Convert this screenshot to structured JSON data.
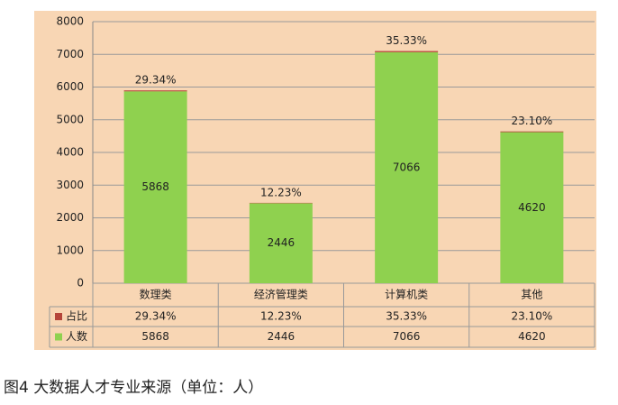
{
  "chart_data": {
    "type": "bar",
    "stacked": true,
    "categories": [
      "数理类",
      "经济管理类",
      "计算机类",
      "其他"
    ],
    "series": [
      {
        "name": "占比",
        "color": "#b5453a",
        "values": [
          29.34,
          12.23,
          35.33,
          23.1
        ],
        "value_labels": [
          "29.34%",
          "12.23%",
          "35.33%",
          "23.10%"
        ]
      },
      {
        "name": "人数",
        "color": "#8fd14f",
        "values": [
          5868,
          2446,
          7066,
          4620
        ]
      }
    ],
    "ylim": [
      0,
      8000
    ],
    "yticks": [
      0,
      1000,
      2000,
      3000,
      4000,
      5000,
      6000,
      7000,
      8000
    ],
    "grid": true,
    "caption": "图4 大数据人才专业来源（单位：人）"
  }
}
